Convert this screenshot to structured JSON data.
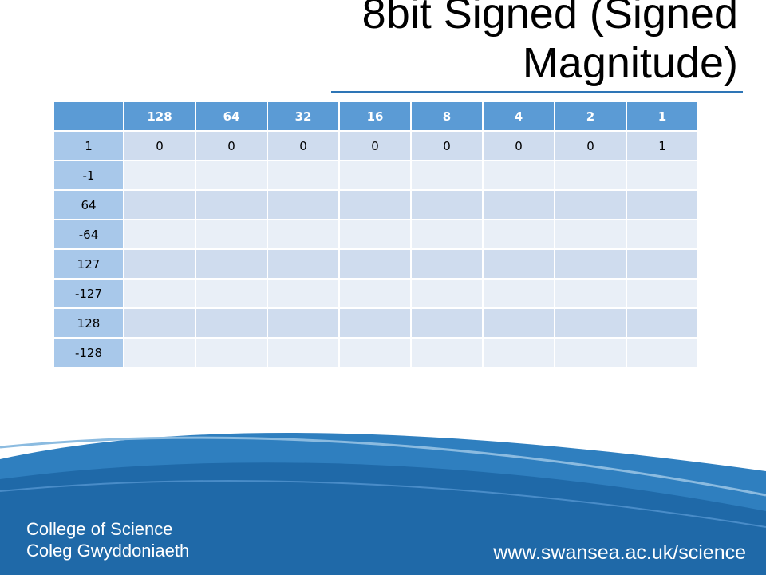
{
  "header": {
    "title_lines": [
      "8bit Signed (Signed",
      "Magnitude)"
    ]
  },
  "table": {
    "columns": [
      "128",
      "64",
      "32",
      "16",
      "8",
      "4",
      "2",
      "1"
    ],
    "rows": [
      {
        "label": "1",
        "bits": [
          "0",
          "0",
          "0",
          "0",
          "0",
          "0",
          "0",
          "1"
        ]
      },
      {
        "label": "-1"
      },
      {
        "label": "64"
      },
      {
        "label": "-64"
      },
      {
        "label": "127"
      },
      {
        "label": "-127"
      },
      {
        "label": "128"
      },
      {
        "label": "-128"
      }
    ]
  },
  "footer": {
    "college": [
      "College of Science",
      "Coleg Gwyddoniaeth"
    ],
    "url": "www.swansea.ac.uk/science"
  }
}
